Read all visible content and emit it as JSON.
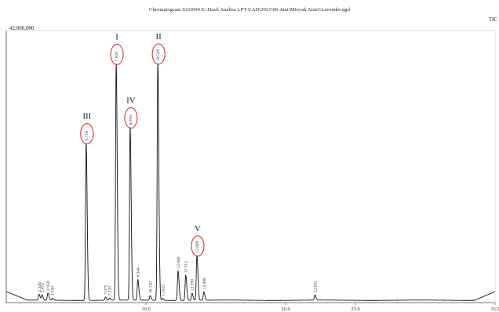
{
  "chart_data": {
    "type": "line",
    "title": "Chromatogram S21I004 E:\\Hasil Analisa LPT-UAD\\2021\\06-Juni\\Minyak Atsiri\\Lavender.qgd",
    "title_right": "TIC",
    "ylim": [
      0,
      42000000
    ],
    "y_top_label": "42,000,000",
    "xlim": [
      0,
      35
    ],
    "x_ticks": [
      "10.0",
      "20.0",
      "25.0",
      "35.0"
    ],
    "grid": false,
    "peaks": [
      {
        "rt": 2.35,
        "height": 900000,
        "label": "2.346"
      },
      {
        "rt": 2.56,
        "height": 800000,
        "label": "2.612"
      },
      {
        "rt": 2.98,
        "height": 1100000,
        "label": "2.950"
      },
      {
        "rt": 3.3,
        "height": 300000,
        "label": "3.330"
      },
      {
        "rt": 5.72,
        "height": 24500000,
        "label": "5.718"
      },
      {
        "rt": 7.1,
        "height": 500000,
        "label": "7.075"
      },
      {
        "rt": 7.4,
        "height": 300000,
        "label": "7.220"
      },
      {
        "rt": 7.87,
        "height": 36800000,
        "label": "7.828"
      },
      {
        "rt": 8.87,
        "height": 26900000,
        "label": "8.630"
      },
      {
        "rt": 9.42,
        "height": 3200000,
        "label": "9.344"
      },
      {
        "rt": 10.3,
        "height": 700000,
        "label": "10.120"
      },
      {
        "rt": 10.85,
        "height": 36900000,
        "label": "10.540"
      },
      {
        "rt": 11.2,
        "height": 300000,
        "label": "11.625"
      },
      {
        "rt": 12.3,
        "height": 4600000,
        "label": "12.680"
      },
      {
        "rt": 12.85,
        "height": 3900000,
        "label": "12.912"
      },
      {
        "rt": 13.3,
        "height": 1100000,
        "label": "13.390"
      },
      {
        "rt": 13.65,
        "height": 7000000,
        "label": "13.809"
      },
      {
        "rt": 14.15,
        "height": 1300000,
        "label": "14.006"
      },
      {
        "rt": 22.1,
        "height": 800000,
        "label": "22.032"
      }
    ],
    "annotations": [
      {
        "text": "I",
        "label": "7.828"
      },
      {
        "text": "II",
        "label": "10.540"
      },
      {
        "text": "III",
        "label": "5.718"
      },
      {
        "text": "IV",
        "label": "8.630"
      },
      {
        "text": "V",
        "label": "13.809"
      }
    ]
  }
}
